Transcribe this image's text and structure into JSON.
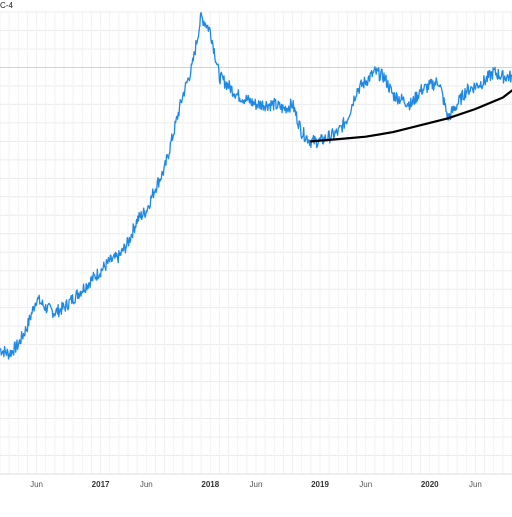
{
  "chart_data": {
    "type": "line",
    "title_fragment": "C-4",
    "x_tick_labels": [
      {
        "label": "Jun",
        "date": "2016-06",
        "bold": false
      },
      {
        "label": "2017",
        "date": "2017-01",
        "bold": true
      },
      {
        "label": "Jun",
        "date": "2017-06",
        "bold": false
      },
      {
        "label": "2018",
        "date": "2018-01",
        "bold": true
      },
      {
        "label": "Jun",
        "date": "2018-06",
        "bold": false
      },
      {
        "label": "2019",
        "date": "2019-01",
        "bold": true
      },
      {
        "label": "Jun",
        "date": "2019-06",
        "bold": false
      },
      {
        "label": "2020",
        "date": "2020-01",
        "bold": true
      },
      {
        "label": "Jun",
        "date": "2020-06",
        "bold": false
      }
    ],
    "x_range": [
      "2016-02",
      "2020-10"
    ],
    "y_axis": "log scale, unlabeled",
    "grid": true,
    "reference_line": {
      "label": "",
      "level": 0.88
    },
    "series": [
      {
        "color": "#1e88e5",
        "points": [
          [
            "2016-02",
            0.27
          ],
          [
            "2016-03",
            0.26
          ],
          [
            "2016-04",
            0.28
          ],
          [
            "2016-05",
            0.32
          ],
          [
            "2016-06",
            0.38
          ],
          [
            "2016-07",
            0.36
          ],
          [
            "2016-08",
            0.35
          ],
          [
            "2016-09",
            0.36
          ],
          [
            "2016-10",
            0.38
          ],
          [
            "2016-11",
            0.4
          ],
          [
            "2016-12",
            0.42
          ],
          [
            "2017-01",
            0.44
          ],
          [
            "2017-02",
            0.46
          ],
          [
            "2017-03",
            0.47
          ],
          [
            "2017-04",
            0.5
          ],
          [
            "2017-05",
            0.55
          ],
          [
            "2017-06",
            0.57
          ],
          [
            "2017-07",
            0.62
          ],
          [
            "2017-08",
            0.66
          ],
          [
            "2017-09",
            0.74
          ],
          [
            "2017-10",
            0.82
          ],
          [
            "2017-11",
            0.88
          ],
          [
            "2017-12",
            0.99
          ],
          [
            "2018-01",
            0.96
          ],
          [
            "2018-02",
            0.86
          ],
          [
            "2018-03",
            0.84
          ],
          [
            "2018-04",
            0.82
          ],
          [
            "2018-05",
            0.81
          ],
          [
            "2018-06",
            0.8
          ],
          [
            "2018-07",
            0.8
          ],
          [
            "2018-08",
            0.8
          ],
          [
            "2018-09",
            0.79
          ],
          [
            "2018-10",
            0.8
          ],
          [
            "2018-11",
            0.74
          ],
          [
            "2018-12",
            0.72
          ],
          [
            "2019-01",
            0.72
          ],
          [
            "2019-02",
            0.73
          ],
          [
            "2019-03",
            0.74
          ],
          [
            "2019-04",
            0.77
          ],
          [
            "2019-05",
            0.83
          ],
          [
            "2019-06",
            0.85
          ],
          [
            "2019-07",
            0.87
          ],
          [
            "2019-08",
            0.86
          ],
          [
            "2019-09",
            0.82
          ],
          [
            "2019-10",
            0.81
          ],
          [
            "2019-11",
            0.8
          ],
          [
            "2019-12",
            0.83
          ],
          [
            "2020-01",
            0.84
          ],
          [
            "2020-02",
            0.85
          ],
          [
            "2020-03",
            0.77
          ],
          [
            "2020-04",
            0.8
          ],
          [
            "2020-05",
            0.83
          ],
          [
            "2020-06",
            0.84
          ],
          [
            "2020-07",
            0.85
          ],
          [
            "2020-08",
            0.87
          ],
          [
            "2020-09",
            0.86
          ],
          [
            "2020-10",
            0.86
          ]
        ]
      }
    ],
    "annotation_curve": {
      "color": "#000000",
      "points": [
        [
          "2018-12",
          0.72
        ],
        [
          "2019-03",
          0.725
        ],
        [
          "2019-06",
          0.73
        ],
        [
          "2019-09",
          0.74
        ],
        [
          "2019-12",
          0.755
        ],
        [
          "2020-03",
          0.77
        ],
        [
          "2020-06",
          0.79
        ],
        [
          "2020-09",
          0.815
        ],
        [
          "2020-10",
          0.83
        ]
      ]
    }
  }
}
